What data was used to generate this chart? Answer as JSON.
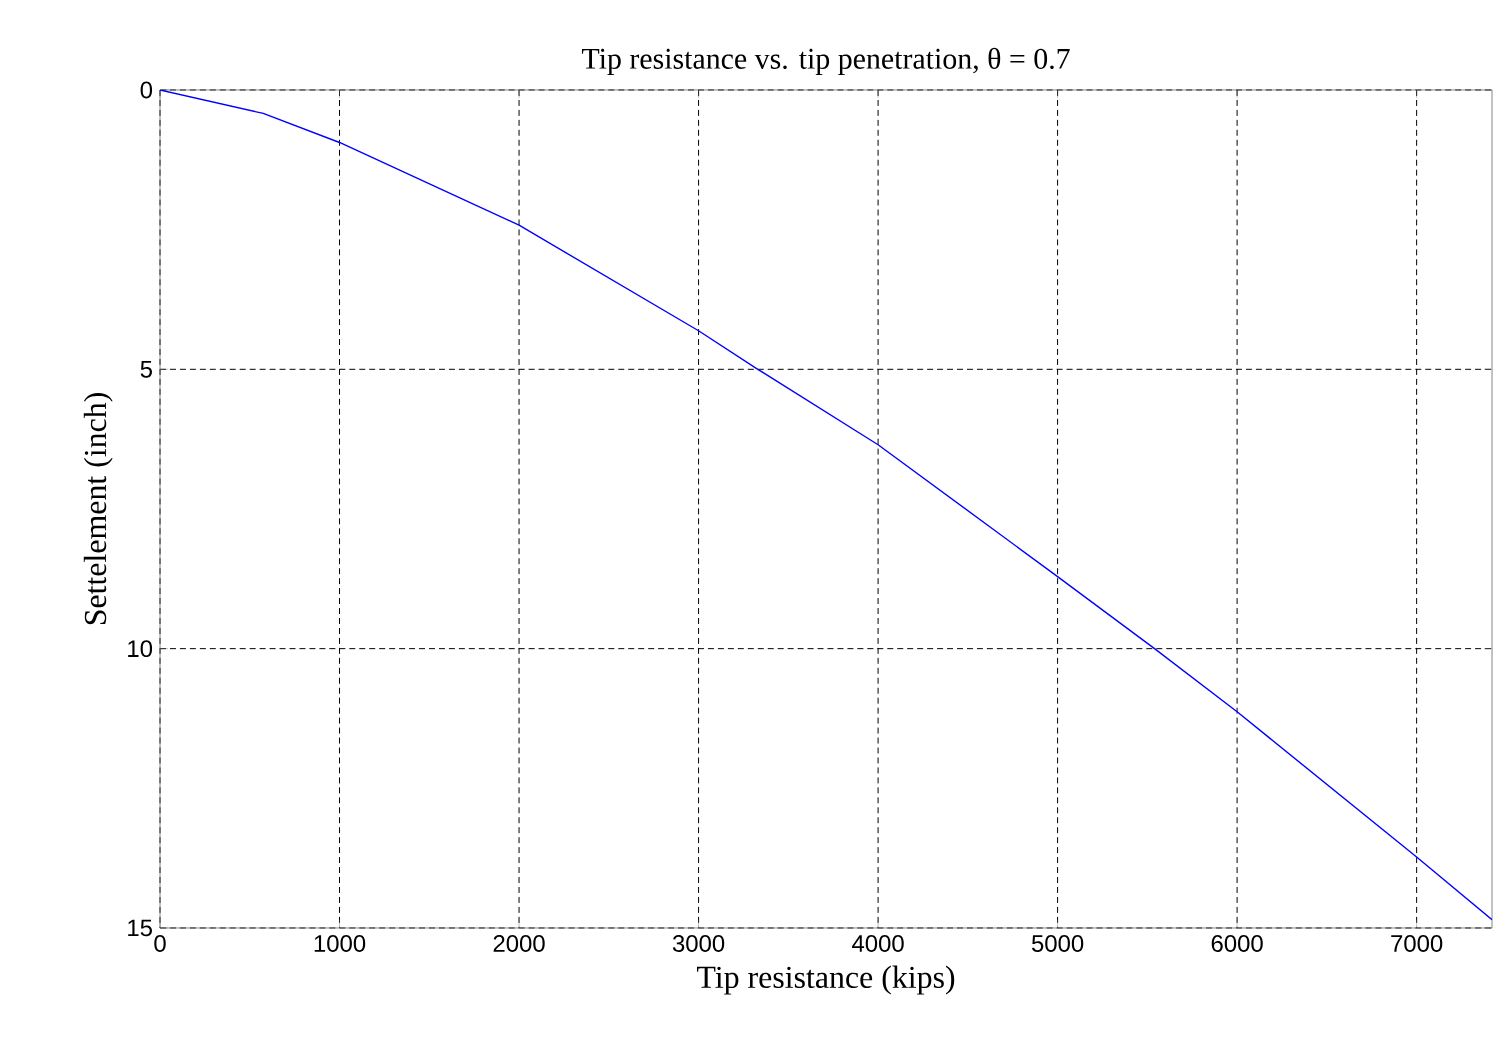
{
  "chart_data": {
    "type": "line",
    "title": "Tip resistance  vs. tip penetration, θ = 0.7",
    "xlabel": "Tip resistance (kips)",
    "ylabel": "Settelement (inch)",
    "x": [
      0,
      575,
      1000,
      2000,
      3000,
      3330,
      4000,
      5000,
      5540,
      6000,
      7000,
      7420
    ],
    "series": [
      {
        "color": "#0000ff",
        "values": [
          0,
          0.42,
          0.94,
          2.42,
          4.31,
          5,
          6.35,
          8.71,
          10,
          11.13,
          13.73,
          14.85
        ]
      }
    ],
    "xlim": [
      0,
      7420
    ],
    "ylim": [
      15,
      0
    ],
    "xticks": [
      0,
      1000,
      2000,
      3000,
      4000,
      5000,
      6000,
      7000
    ],
    "yticks": [
      0,
      5,
      10,
      15
    ],
    "grid": true,
    "marker": "none",
    "line_style": "solid"
  }
}
